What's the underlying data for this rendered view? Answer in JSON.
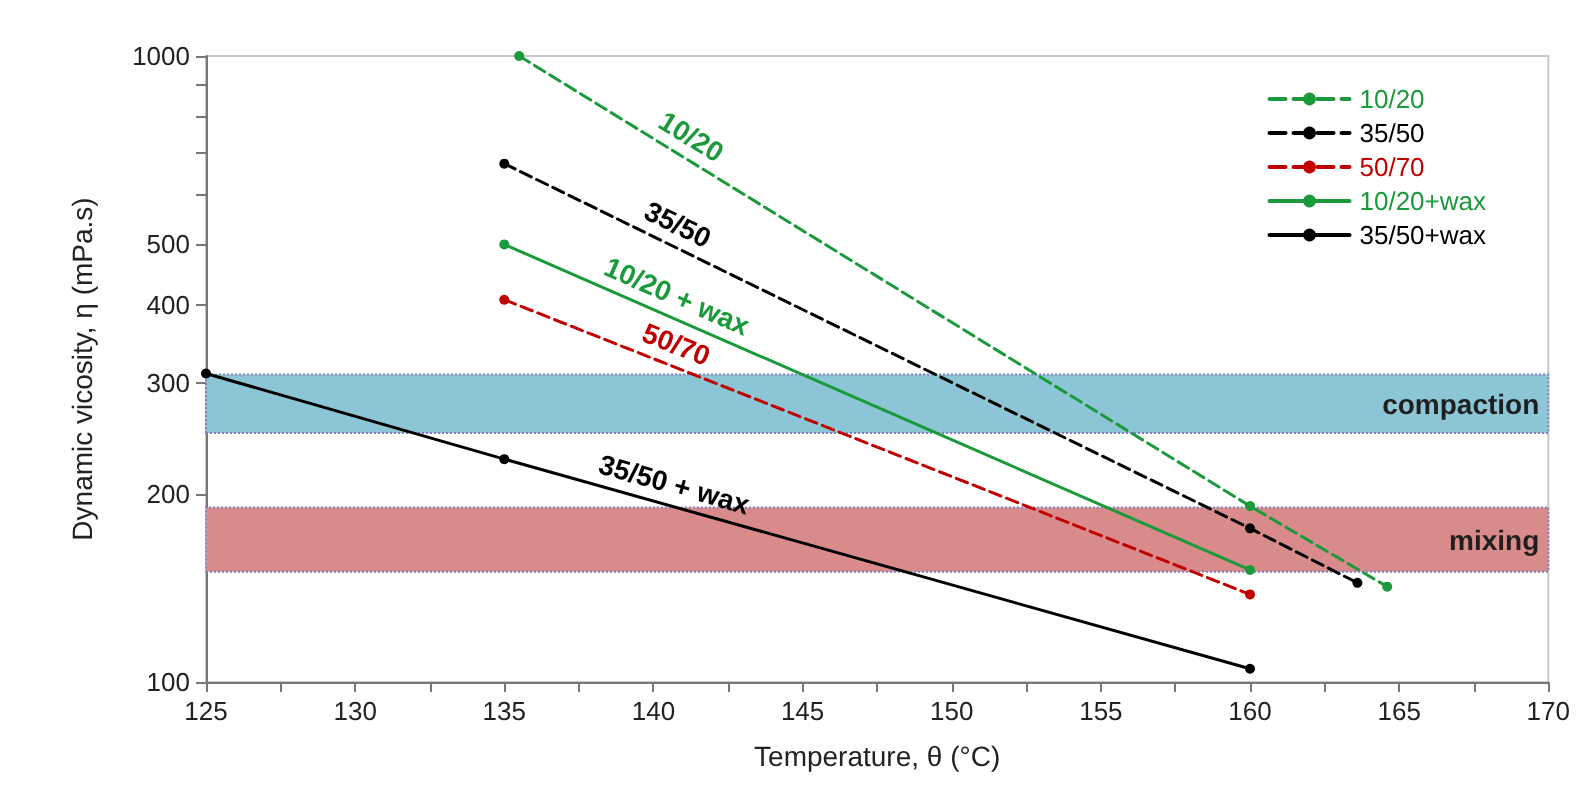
{
  "chart_data": {
    "type": "line",
    "xlabel": "Temperature, θ (°C)",
    "ylabel": "Dynamic vicosity, η (mPa.s)",
    "xlim": [
      125,
      170
    ],
    "xticks": [
      125,
      {
        "value": 127.5,
        "label": null
      },
      130,
      {
        "value": 132.5,
        "label": null
      },
      135,
      {
        "value": 137.5,
        "label": null
      },
      140,
      {
        "value": 142.5,
        "label": null
      },
      145,
      {
        "value": 147.5,
        "label": null
      },
      150,
      {
        "value": 152.5,
        "label": null
      },
      155,
      {
        "value": 157.5,
        "label": null
      },
      160,
      {
        "value": 162.5,
        "label": null
      },
      165,
      {
        "value": 167.5,
        "label": null
      },
      170
    ],
    "ylim": [
      100,
      1000
    ],
    "yticks": [
      100,
      200,
      300,
      400,
      500,
      {
        "value": 600,
        "label": null
      },
      {
        "value": 700,
        "label": null
      },
      {
        "value": 800,
        "label": null
      },
      {
        "value": 900,
        "label": null
      },
      1000
    ],
    "log": true,
    "grid": false,
    "legend": "top right",
    "marker": "circle",
    "series": [
      {
        "name": "10/20",
        "color": "#1a9a3a",
        "line_style": "dashed",
        "x": [
          135.5,
          160,
          164.6
        ],
        "values": [
          1000,
          191,
          142
        ]
      },
      {
        "name": "35/50",
        "color": "#000000",
        "line_style": "dashed",
        "x": [
          135,
          160,
          163.6
        ],
        "values": [
          673,
          176,
          144
        ]
      },
      {
        "name": "50/70",
        "color": "#c00000",
        "line_style": "dashed",
        "x": [
          135,
          160
        ],
        "values": [
          408,
          138
        ]
      },
      {
        "name": "10/20+wax",
        "color": "#1a9a3a",
        "line_style": "solid",
        "x": [
          135,
          160
        ],
        "values": [
          500,
          151
        ]
      },
      {
        "name": "35/50+wax",
        "color": "#000000",
        "line_style": "solid",
        "x": [
          125,
          135,
          160
        ],
        "values": [
          311,
          227,
          105
        ]
      }
    ],
    "bands": [
      {
        "axis": "y",
        "from": 250,
        "to": 310,
        "label": "compaction",
        "color": "#8cc5d5"
      },
      {
        "axis": "y",
        "from": 150,
        "to": 190,
        "label": "mixing",
        "color": "#d98a8a"
      }
    ],
    "annotations": [
      "10/20",
      "35/50",
      "50/70",
      "10/20 + wax",
      "35/50 + wax"
    ]
  }
}
